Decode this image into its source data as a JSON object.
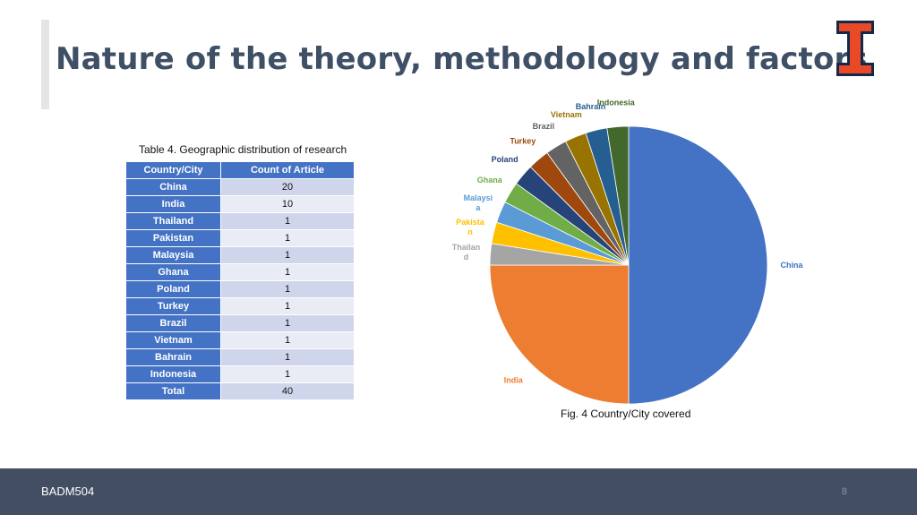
{
  "slide": {
    "title": "Nature of the theory, methodology and factors",
    "table_caption": "Table 4. Geographic distribution of research",
    "figure_caption": "Fig. 4 Country/City covered",
    "course_code": "BADM504",
    "page_number": "8"
  },
  "brand": {
    "logo": "block-i-icon",
    "logo_color": "#e84a27",
    "logo_outline": "#13294b"
  },
  "table": {
    "headers": [
      "Country/City",
      "Count of Article"
    ],
    "rows": [
      [
        "China",
        "20"
      ],
      [
        "India",
        "10"
      ],
      [
        "Thailand",
        "1"
      ],
      [
        "Pakistan",
        "1"
      ],
      [
        "Malaysia",
        "1"
      ],
      [
        "Ghana",
        "1"
      ],
      [
        "Poland",
        "1"
      ],
      [
        "Turkey",
        "1"
      ],
      [
        "Brazil",
        "1"
      ],
      [
        "Vietnam",
        "1"
      ],
      [
        "Bahrain",
        "1"
      ],
      [
        "Indonesia",
        "1"
      ]
    ],
    "total": [
      "Total",
      "40"
    ]
  },
  "chart_data": {
    "type": "pie",
    "categories": [
      "China",
      "India",
      "Thailand",
      "Pakistan",
      "Malaysia",
      "Ghana",
      "Poland",
      "Turkey",
      "Brazil",
      "Vietnam",
      "Bahrain",
      "Indonesia"
    ],
    "values": [
      20,
      10,
      1,
      1,
      1,
      1,
      1,
      1,
      1,
      1,
      1,
      1
    ],
    "slice_labels": [
      "China",
      "India",
      "Thailan\nd",
      "Pakista\nn",
      "Malaysi\na",
      "Ghana",
      "Poland",
      "Turkey",
      "Brazil",
      "Vietnam",
      "Bahrain",
      "Indonesia"
    ],
    "colors": [
      "#4472c4",
      "#ed7d31",
      "#a5a5a5",
      "#ffc000",
      "#5b9bd5",
      "#70ad47",
      "#264478",
      "#9e480e",
      "#636363",
      "#997300",
      "#255e91",
      "#43682b"
    ],
    "label_colors": [
      "#4472c4",
      "#ed7d31",
      "#a5a5a5",
      "#ffc000",
      "#5b9bd5",
      "#70ad47",
      "#264478",
      "#9e480e",
      "#636363",
      "#997300",
      "#255e91",
      "#43682b"
    ],
    "legend": "none",
    "start_angle": "12 o'clock, clockwise"
  }
}
